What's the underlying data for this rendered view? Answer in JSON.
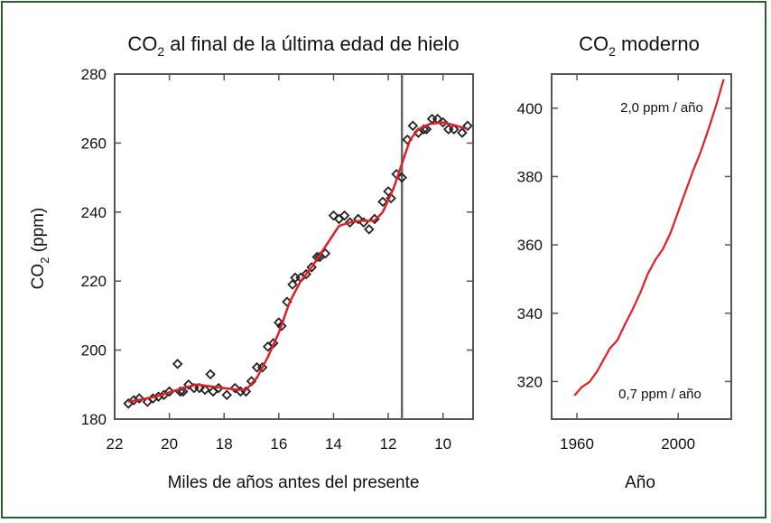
{
  "colors": {
    "frame": "#2e5e2e",
    "curve": "#e21f26",
    "marker": "#222222",
    "axis": "#555555"
  },
  "chart_data": [
    {
      "type": "scatter",
      "title_main": "CO",
      "title_sub": "2",
      "title_rest": " al final de la última edad de hielo",
      "xlabel": "Miles de años antes del presente",
      "ylabel_main": "CO",
      "ylabel_sub": "2",
      "ylabel_rest": " (ppm)",
      "x_reversed": true,
      "xlim": [
        22,
        8.9
      ],
      "ylim": [
        180,
        280
      ],
      "xticks": [
        "22",
        "20",
        "18",
        "16",
        "14",
        "12",
        "10"
      ],
      "yticks": [
        "180",
        "200",
        "220",
        "240",
        "260",
        "280"
      ],
      "vertical_line_x": 11.5,
      "points": [
        [
          21.5,
          184.5
        ],
        [
          21.3,
          185.5
        ],
        [
          21.1,
          186
        ],
        [
          20.8,
          185
        ],
        [
          20.6,
          186
        ],
        [
          20.4,
          186.5
        ],
        [
          20.2,
          187
        ],
        [
          20.0,
          188
        ],
        [
          19.7,
          196
        ],
        [
          19.6,
          188
        ],
        [
          19.5,
          188
        ],
        [
          19.3,
          190
        ],
        [
          19.1,
          189
        ],
        [
          18.9,
          189
        ],
        [
          18.7,
          188.5
        ],
        [
          18.5,
          193
        ],
        [
          18.4,
          188
        ],
        [
          18.2,
          189
        ],
        [
          17.9,
          187
        ],
        [
          17.6,
          189
        ],
        [
          17.4,
          188
        ],
        [
          17.2,
          188
        ],
        [
          17.0,
          191
        ],
        [
          16.8,
          195
        ],
        [
          16.6,
          195
        ],
        [
          16.4,
          201
        ],
        [
          16.2,
          202
        ],
        [
          16.0,
          208
        ],
        [
          15.9,
          207
        ],
        [
          15.7,
          214
        ],
        [
          15.5,
          219
        ],
        [
          15.4,
          221
        ],
        [
          15.2,
          221
        ],
        [
          15.0,
          222
        ],
        [
          14.8,
          224
        ],
        [
          14.6,
          227
        ],
        [
          14.5,
          227
        ],
        [
          14.3,
          228
        ],
        [
          14.0,
          239
        ],
        [
          13.8,
          238
        ],
        [
          13.6,
          239
        ],
        [
          13.4,
          237
        ],
        [
          13.1,
          238
        ],
        [
          12.9,
          237
        ],
        [
          12.7,
          235
        ],
        [
          12.5,
          238
        ],
        [
          12.2,
          243
        ],
        [
          12.0,
          246
        ],
        [
          11.9,
          244
        ],
        [
          11.7,
          251
        ],
        [
          11.5,
          250
        ],
        [
          11.3,
          261
        ],
        [
          11.1,
          265
        ],
        [
          10.9,
          263
        ],
        [
          10.7,
          264
        ],
        [
          10.6,
          264
        ],
        [
          10.4,
          267
        ],
        [
          10.2,
          267
        ],
        [
          10.0,
          266
        ],
        [
          9.8,
          264
        ],
        [
          9.6,
          264
        ],
        [
          9.3,
          263
        ],
        [
          9.1,
          265
        ]
      ],
      "fit_curve": [
        [
          21.5,
          185
        ],
        [
          20.5,
          186.5
        ],
        [
          19.5,
          189
        ],
        [
          19.0,
          190
        ],
        [
          18.0,
          189
        ],
        [
          17.5,
          188.5
        ],
        [
          17.2,
          188.5
        ],
        [
          16.8,
          192
        ],
        [
          16.4,
          198
        ],
        [
          16.0,
          205
        ],
        [
          15.6,
          214
        ],
        [
          15.2,
          220
        ],
        [
          14.8,
          224
        ],
        [
          14.3,
          230
        ],
        [
          13.8,
          236
        ],
        [
          13.4,
          237
        ],
        [
          13.0,
          237.5
        ],
        [
          12.5,
          237.5
        ],
        [
          12.2,
          240
        ],
        [
          11.8,
          247
        ],
        [
          11.5,
          254
        ],
        [
          11.2,
          261
        ],
        [
          10.9,
          264
        ],
        [
          10.5,
          265.5
        ],
        [
          10.0,
          266
        ],
        [
          9.5,
          265
        ],
        [
          9.1,
          264
        ]
      ]
    },
    {
      "type": "line",
      "title_main": "CO",
      "title_sub": "2",
      "title_rest": " moderno",
      "xlabel": "Año",
      "xlim": [
        1950,
        2021
      ],
      "ylim": [
        309,
        410
      ],
      "xticks": [
        "1960",
        "2000"
      ],
      "yticks": [
        "320",
        "340",
        "360",
        "380",
        "400"
      ],
      "annotation_top": "2,0 ppm / año",
      "annotation_bottom": "0,7 ppm / año",
      "x": [
        1959,
        1962,
        1965,
        1968,
        1970,
        1973,
        1976,
        1979,
        1982,
        1985,
        1988,
        1991,
        1994,
        1997,
        2000,
        2003,
        2006,
        2009,
        2012,
        2015,
        2018
      ],
      "values": [
        315.9,
        318.4,
        319.9,
        323,
        325.7,
        329.7,
        332.1,
        336.8,
        341.1,
        345.9,
        351.5,
        355.6,
        358.8,
        363.5,
        369.6,
        375.8,
        381.9,
        387.4,
        393.9,
        400.8,
        408.5
      ]
    }
  ]
}
